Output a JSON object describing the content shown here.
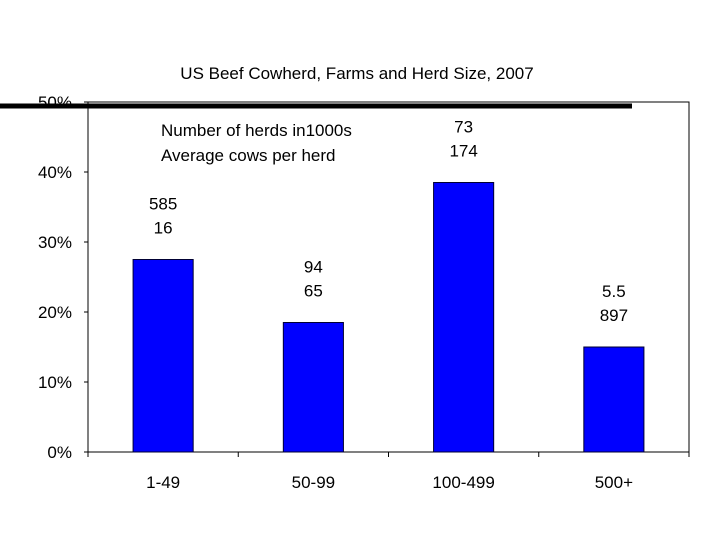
{
  "chart_data": {
    "type": "bar",
    "title": "US Beef Cowherd, Farms and Herd Size, 2007",
    "categories": [
      "1-49",
      "50-99",
      "100-499",
      "500+"
    ],
    "values": [
      27.5,
      18.5,
      38.5,
      15
    ],
    "data_labels": [
      {
        "herds": "585",
        "cows": "16"
      },
      {
        "herds": "94",
        "cows": "65"
      },
      {
        "herds": "73",
        "cows": "174"
      },
      {
        "herds": "5.5",
        "cows": "897"
      }
    ],
    "legend_text": [
      "Number of herds in1000s",
      "Average cows per herd"
    ],
    "y_ticks": [
      "0%",
      "10%",
      "20%",
      "30%",
      "40%",
      "50%"
    ],
    "ylim": [
      0,
      50
    ],
    "y_unit": "%",
    "grid": false,
    "legend_position": "top-left",
    "colors": {
      "bar": "#0000ff",
      "bar_edge": "#000033",
      "header_line": "#000000"
    }
  }
}
